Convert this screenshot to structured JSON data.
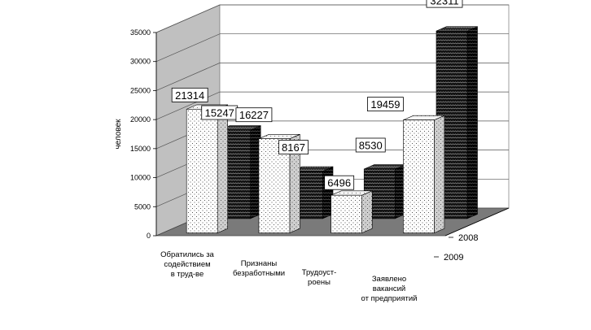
{
  "chart_data": {
    "type": "bar",
    "ylabel": "человек",
    "ylim": [
      0,
      35000
    ],
    "yticks": [
      0,
      5000,
      10000,
      15000,
      20000,
      25000,
      30000,
      35000
    ],
    "categories": [
      [
        "Обратились за",
        "содействием",
        "в труд-ве"
      ],
      [
        "Признаны",
        "безработными"
      ],
      [
        "Трудоуст-",
        "роены"
      ],
      [
        "Заявлено",
        "вакансий",
        "от предприятий"
      ]
    ],
    "series": [
      {
        "name": "2009",
        "values": [
          21314,
          16227,
          6496,
          19459
        ],
        "fill": "#ffffff"
      },
      {
        "name": "2008",
        "values": [
          15247,
          8167,
          8530,
          32311
        ],
        "fill": "#111111"
      }
    ],
    "colors": {
      "wall": "#c0c0c0",
      "floor": "#7a7a7a"
    }
  }
}
